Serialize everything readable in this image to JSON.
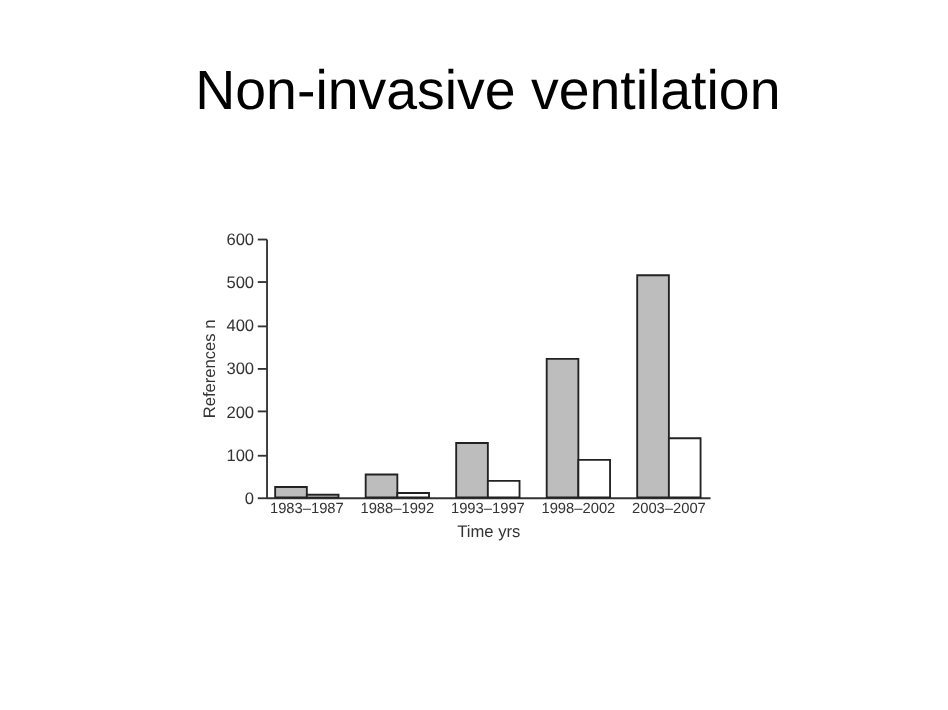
{
  "chart_data": {
    "type": "bar",
    "title": "Non-invasive ventilation",
    "xlabel": "Time yrs",
    "ylabel": "References n",
    "categories": [
      "1983–1987",
      "1988–1992",
      "1993–1997",
      "1998–2002",
      "2003–2007"
    ],
    "series": [
      {
        "color": "#bdbdbd",
        "values": [
          24,
          53,
          126,
          321,
          515
        ]
      },
      {
        "color": "#ffffff",
        "values": [
          6,
          10,
          38,
          87,
          137
        ]
      }
    ],
    "ylim": [
      0,
      600
    ],
    "yticks": [
      0,
      100,
      200,
      300,
      400,
      500,
      600
    ],
    "grid": false,
    "legend": false
  }
}
